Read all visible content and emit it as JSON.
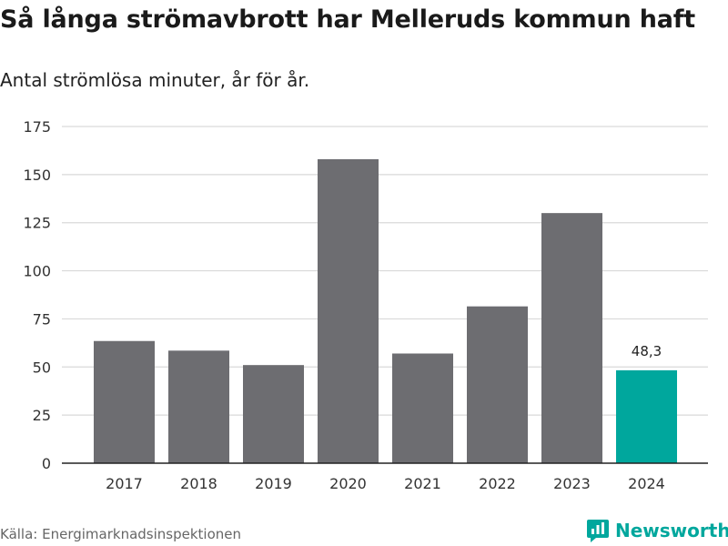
{
  "title": "Så långa strömavbrott har Melleruds kommun haft",
  "subtitle": "Antal strömlösa minuter, år för år.",
  "source": "Källa: Energimarknadsinspektionen",
  "brand": {
    "name": "Newsworthy",
    "icon": "newsworthy-logo-icon"
  },
  "colors": {
    "bar": "#6d6d71",
    "highlight": "#00A79D",
    "grid": "#d9d9d9",
    "axis": "#222222"
  },
  "chart_data": {
    "type": "bar",
    "title": "Så långa strömavbrott har Melleruds kommun haft",
    "subtitle": "Antal strömlösa minuter, år för år.",
    "xlabel": "",
    "ylabel": "",
    "categories": [
      "2017",
      "2018",
      "2019",
      "2020",
      "2021",
      "2022",
      "2023",
      "2024"
    ],
    "values": [
      63.5,
      58.5,
      51,
      158,
      57,
      81.5,
      130,
      48.3
    ],
    "highlight_index": 7,
    "data_labels": {
      "2024": "48,3"
    },
    "ylim": [
      0,
      175
    ],
    "yticks": [
      0,
      25,
      50,
      75,
      100,
      125,
      150,
      175
    ],
    "grid": true
  }
}
